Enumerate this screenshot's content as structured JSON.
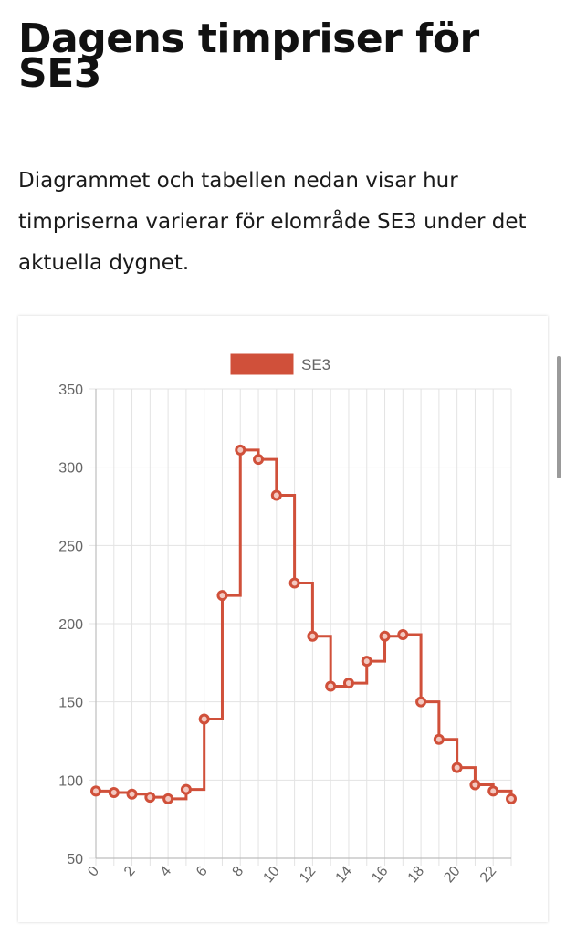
{
  "page": {
    "title": "Dagens timpriser för SE3",
    "intro": "Diagrammet och tabellen nedan visar hur timpriserna varierar för elområde SE3 under det aktuella dygnet."
  },
  "colors": {
    "series": "#d0503a",
    "grid": "#e3e3e3",
    "axis_text": "#666666"
  },
  "chart_data": {
    "type": "line",
    "step": true,
    "x": [
      0,
      1,
      2,
      3,
      4,
      5,
      6,
      7,
      8,
      9,
      10,
      11,
      12,
      13,
      14,
      15,
      16,
      17,
      18,
      19,
      20,
      21,
      22,
      23
    ],
    "x_tick_labels": [
      "0",
      "2",
      "4",
      "6",
      "8",
      "10",
      "12",
      "14",
      "16",
      "18",
      "20",
      "22"
    ],
    "series": [
      {
        "name": "SE3",
        "values": [
          93,
          92,
          91,
          89,
          88,
          94,
          139,
          218,
          311,
          305,
          282,
          226,
          192,
          160,
          162,
          176,
          192,
          193,
          150,
          126,
          108,
          97,
          93,
          88
        ]
      }
    ],
    "ylim": [
      50,
      350
    ],
    "y_ticks": [
      50,
      100,
      150,
      200,
      250,
      300,
      350
    ],
    "grid": true,
    "legend": "top-center",
    "title": "",
    "xlabel": "",
    "ylabel": ""
  }
}
